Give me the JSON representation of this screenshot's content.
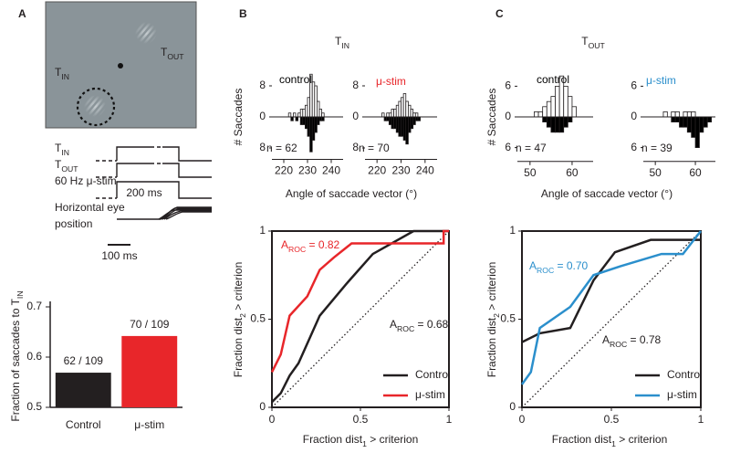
{
  "figure": {
    "panels": [
      {
        "label": "A"
      },
      {
        "label": "B",
        "title": [
          "T",
          "IN"
        ]
      },
      {
        "label": "C",
        "title": [
          "T",
          "OUT"
        ]
      }
    ],
    "schematic": {
      "target_in": [
        "T",
        "IN"
      ],
      "target_out": [
        "T",
        "OUT"
      ],
      "rows": [
        [
          "T",
          "IN"
        ],
        [
          "T",
          "OUT"
        ],
        [
          "60 Hz μ-stim"
        ]
      ],
      "eye_label": [
        "Horizontal eye",
        "position"
      ],
      "duration": "200 ms",
      "scale_bar": "100 ms"
    }
  },
  "chart_data": [
    {
      "type": "bar",
      "ylabel": [
        "Fraction of saccades to T",
        "IN"
      ],
      "categories": [
        "Control",
        "μ-stim"
      ],
      "values": [
        0.569,
        0.642
      ],
      "value_labels": [
        "62 / 109",
        "70 / 109"
      ],
      "colors": [
        "#231f20",
        "#e8262a"
      ],
      "ylim": [
        0.5,
        0.7
      ],
      "yticks": [
        0.5,
        0.6,
        0.7
      ]
    },
    {
      "type": "histogram",
      "title": "control",
      "title_color": "#000000",
      "annotation": "n = 62",
      "xlabel": "Angle of saccade vector (°)",
      "ylabel": "# Saccades",
      "bins": [
        222,
        223,
        224,
        225,
        226,
        227,
        228,
        229,
        230,
        231,
        232,
        233,
        234,
        235,
        236,
        237,
        238
      ],
      "series": [
        {
          "color": "#ffffff",
          "values": [
            1,
            0,
            1,
            0,
            1,
            2,
            2,
            3,
            5,
            11,
            9,
            8,
            4,
            2,
            1,
            0
          ]
        },
        {
          "color": "#000000",
          "direction": "down",
          "values": [
            0,
            1,
            0,
            1,
            0,
            2,
            2,
            3,
            5,
            9,
            6,
            4,
            2,
            1,
            1,
            0
          ]
        }
      ],
      "xlim": [
        215,
        245
      ],
      "xticks": [
        220,
        230,
        240
      ],
      "ylim": [
        -10,
        13
      ],
      "yticks": [
        8,
        0,
        {
          "value": -8,
          "label": "8"
        }
      ]
    },
    {
      "type": "histogram",
      "title": "μ-stim",
      "title_color": "#e8262a",
      "annotation": "n = 70",
      "bins": [
        220,
        221,
        222,
        223,
        224,
        225,
        226,
        227,
        228,
        229,
        230,
        231,
        232,
        233,
        234,
        235,
        236,
        237,
        238,
        239,
        240
      ],
      "series": [
        {
          "color": "#ffffff",
          "values": [
            0,
            0,
            1,
            0,
            1,
            1,
            2,
            2,
            3,
            4,
            5,
            6,
            4,
            3,
            2,
            1,
            1,
            0,
            0,
            0
          ]
        },
        {
          "color": "#000000",
          "direction": "down",
          "values": [
            0,
            0,
            0,
            1,
            1,
            2,
            3,
            3,
            4,
            5,
            5,
            6,
            7,
            4,
            3,
            2,
            1,
            1,
            0,
            0
          ]
        }
      ],
      "xlim": [
        215,
        245
      ],
      "xticks": [
        220,
        230,
        240
      ],
      "ylim": [
        -10,
        13
      ],
      "yticks": [
        8,
        0,
        {
          "value": -8,
          "label": "8"
        }
      ]
    },
    {
      "type": "histogram",
      "title": "control",
      "title_color": "#000000",
      "annotation": "n = 47",
      "xlabel": "Angle of saccade vector (°)",
      "ylabel": "# Saccades",
      "bins": [
        50,
        51,
        52,
        53,
        54,
        55,
        56,
        57,
        58,
        59,
        60,
        61,
        62,
        63
      ],
      "series": [
        {
          "color": "#ffffff",
          "values": [
            0,
            1,
            1,
            2,
            3,
            4,
            6,
            8,
            6,
            4,
            2,
            0,
            0
          ]
        },
        {
          "color": "#000000",
          "direction": "down",
          "values": [
            0,
            0,
            0,
            1,
            2,
            3,
            3,
            3,
            2,
            1,
            0,
            0,
            0
          ]
        }
      ],
      "xlim": [
        47,
        65
      ],
      "xticks": [
        50,
        60
      ],
      "ylim": [
        -8,
        9
      ],
      "yticks": [
        6,
        0,
        {
          "value": -6,
          "label": "6"
        }
      ]
    },
    {
      "type": "histogram",
      "title": "μ-stim",
      "title_color": "#2b8fcc",
      "annotation": "n = 39",
      "bins": [
        52,
        53,
        54,
        55,
        56,
        57,
        58,
        59,
        60,
        61,
        62,
        63,
        64,
        65
      ],
      "series": [
        {
          "color": "#ffffff",
          "values": [
            1,
            0,
            1,
            1,
            0,
            1,
            1,
            1,
            0,
            0,
            0,
            0,
            0
          ]
        },
        {
          "color": "#000000",
          "direction": "down",
          "values": [
            0,
            0,
            1,
            1,
            2,
            2,
            3,
            4,
            6,
            3,
            2,
            1,
            0
          ]
        }
      ],
      "xlim": [
        47,
        65
      ],
      "xticks": [
        50,
        60
      ],
      "ylim": [
        -8,
        9
      ],
      "yticks": [
        6,
        0,
        {
          "value": -6,
          "label": "6"
        }
      ]
    },
    {
      "type": "line",
      "xlabel": [
        "Fraction dist",
        "1",
        " > criterion"
      ],
      "ylabel": [
        "Fraction dist",
        "2",
        " > criterion"
      ],
      "series": [
        {
          "name": "Control",
          "color": "#231f20",
          "x": [
            0,
            0.05,
            0.1,
            0.15,
            0.27,
            0.42,
            0.57,
            0.8,
            1
          ],
          "values": [
            0.03,
            0.08,
            0.18,
            0.25,
            0.52,
            0.7,
            0.87,
            1,
            1
          ]
        },
        {
          "name": "μ-stim",
          "color": "#e8262a",
          "x": [
            0,
            0.05,
            0.1,
            0.2,
            0.27,
            0.35,
            0.45,
            0.97,
            0.97,
            1
          ],
          "values": [
            0.2,
            0.3,
            0.52,
            0.63,
            0.78,
            0.85,
            0.93,
            0.93,
            1,
            1
          ]
        }
      ],
      "annotations": [
        {
          "text": [
            "A",
            "ROC",
            " = 0.82"
          ],
          "color": "#e8262a"
        },
        {
          "text": [
            "A",
            "ROC",
            " = 0.68"
          ],
          "color": "#231f20"
        }
      ],
      "legend": "lower right",
      "xlim": [
        0,
        1
      ],
      "ylim": [
        0,
        1
      ],
      "xticks": [
        0,
        0.5,
        1
      ],
      "yticks": [
        0,
        0.5,
        1
      ]
    },
    {
      "type": "line",
      "xlabel": [
        "Fraction dist",
        "1",
        " > criterion"
      ],
      "ylabel": [
        "Fraction dist",
        "2",
        " > criterion"
      ],
      "series": [
        {
          "name": "Control",
          "color": "#231f20",
          "x": [
            0,
            0.1,
            0.27,
            0.4,
            0.52,
            0.72,
            1
          ],
          "values": [
            0.37,
            0.42,
            0.45,
            0.72,
            0.88,
            0.95,
            0.95
          ]
        },
        {
          "name": "μ-stim",
          "color": "#2b8fcc",
          "x": [
            0,
            0.05,
            0.1,
            0.27,
            0.4,
            0.55,
            0.78,
            0.9,
            1
          ],
          "values": [
            0.13,
            0.2,
            0.45,
            0.57,
            0.75,
            0.8,
            0.87,
            0.87,
            1
          ]
        }
      ],
      "annotations": [
        {
          "text": [
            "A",
            "ROC",
            " = 0.70"
          ],
          "color": "#2b8fcc"
        },
        {
          "text": [
            "A",
            "ROC",
            " = 0.78"
          ],
          "color": "#231f20"
        }
      ],
      "legend": "lower right",
      "xlim": [
        0,
        1
      ],
      "ylim": [
        0,
        1
      ],
      "xticks": [
        0,
        0.5,
        1
      ],
      "yticks": [
        0,
        0.5,
        1
      ]
    }
  ]
}
